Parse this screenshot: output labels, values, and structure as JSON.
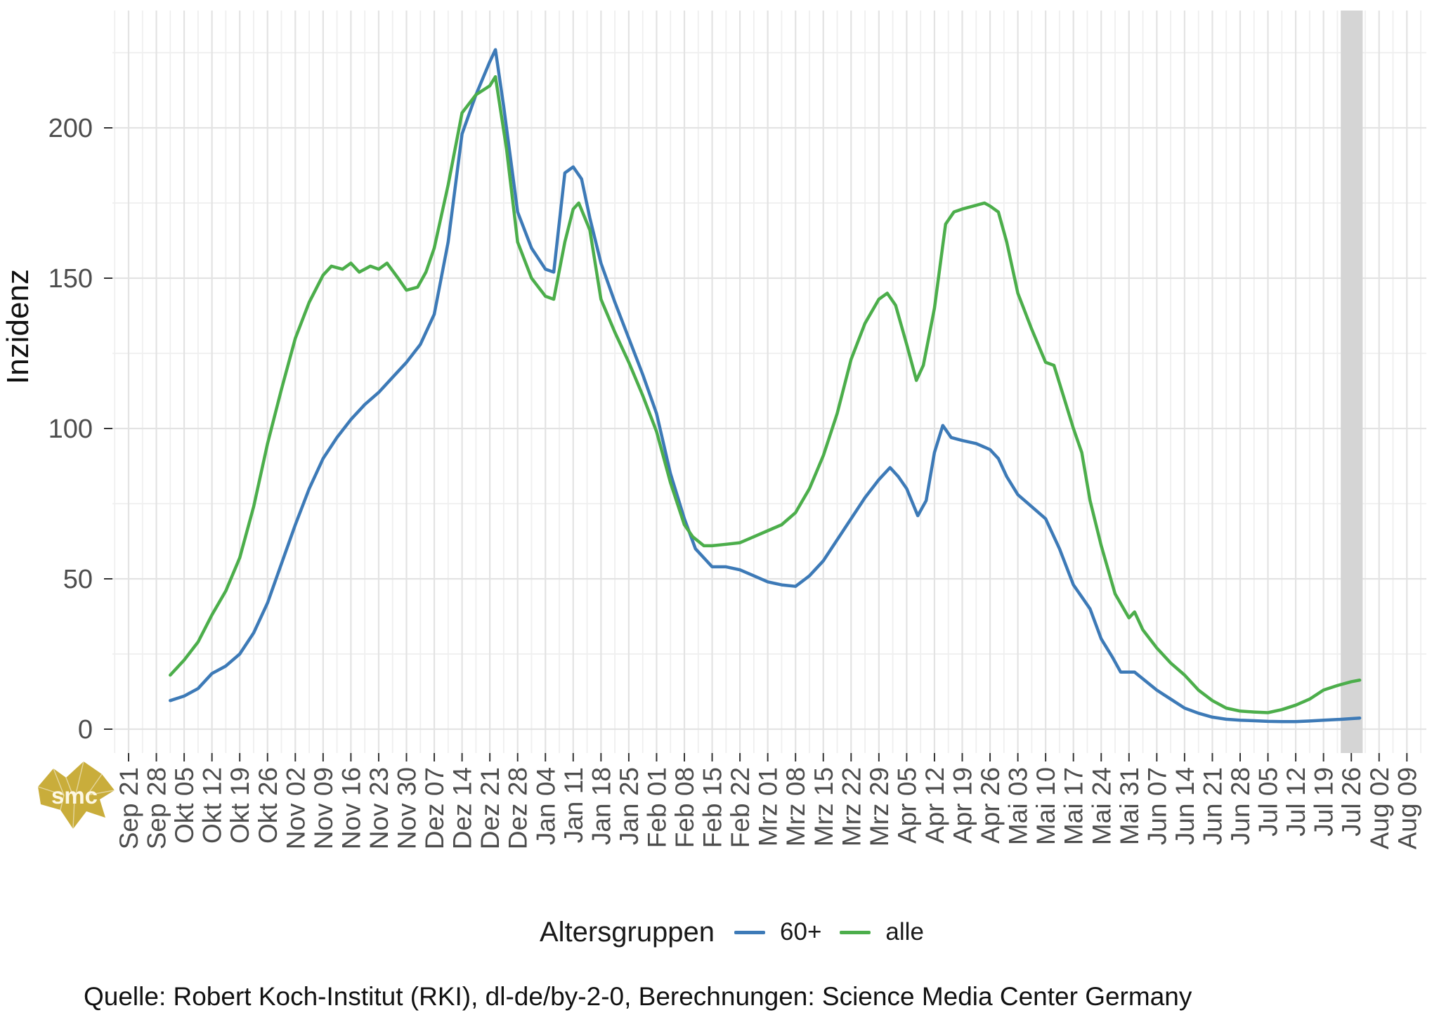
{
  "chart_data": {
    "type": "line",
    "title": "",
    "xlabel": "",
    "ylabel": "Inzidenz",
    "ylim": [
      0,
      232
    ],
    "yticks": [
      0,
      50,
      100,
      150,
      200
    ],
    "grid": "on",
    "categories": [
      "Sep 21",
      "Sep 28",
      "Okt 05",
      "Okt 12",
      "Okt 19",
      "Okt 26",
      "Nov 02",
      "Nov 09",
      "Nov 16",
      "Nov 23",
      "Nov 30",
      "Dez 07",
      "Dez 14",
      "Dez 21",
      "Dez 28",
      "Jan 04",
      "Jan 11",
      "Jan 18",
      "Jan 25",
      "Feb 01",
      "Feb 08",
      "Feb 15",
      "Feb 22",
      "Mrz 01",
      "Mrz 08",
      "Mrz 15",
      "Mrz 22",
      "Mrz 29",
      "Apr 05",
      "Apr 12",
      "Apr 19",
      "Apr 26",
      "Mai 03",
      "Mai 10",
      "Mai 17",
      "Mai 24",
      "Mai 31",
      "Jun 07",
      "Jun 14",
      "Jun 21",
      "Jun 28",
      "Jul 05",
      "Jul 12",
      "Jul 19",
      "Jul 26",
      "Aug 02",
      "Aug 09"
    ],
    "legend": {
      "title": "Altersgruppen",
      "position": "bottom"
    },
    "highlight_band": {
      "from_week": 43.62,
      "to_week": 44.41,
      "color": "#d5d5d5"
    },
    "series": [
      {
        "name": "60+",
        "color": "#3d7ab7",
        "points": [
          [
            1.5,
            9.5
          ],
          [
            2,
            11
          ],
          [
            2.5,
            13.5
          ],
          [
            3,
            18.5
          ],
          [
            3.5,
            21
          ],
          [
            4,
            25
          ],
          [
            4.5,
            32
          ],
          [
            5,
            42
          ],
          [
            5.5,
            55
          ],
          [
            6,
            68
          ],
          [
            6.5,
            80
          ],
          [
            7,
            90
          ],
          [
            7.5,
            97
          ],
          [
            8,
            103
          ],
          [
            8.5,
            108
          ],
          [
            9,
            112
          ],
          [
            9.5,
            117
          ],
          [
            10,
            122
          ],
          [
            10.5,
            128
          ],
          [
            11,
            138
          ],
          [
            11.5,
            162
          ],
          [
            12,
            198
          ],
          [
            12.5,
            211
          ],
          [
            13,
            222
          ],
          [
            13.2,
            226
          ],
          [
            13.5,
            207
          ],
          [
            14,
            172
          ],
          [
            14.5,
            160
          ],
          [
            15,
            153
          ],
          [
            15.3,
            152
          ],
          [
            15.7,
            185
          ],
          [
            16,
            187
          ],
          [
            16.3,
            183
          ],
          [
            16.6,
            170
          ],
          [
            17,
            155
          ],
          [
            17.5,
            142
          ],
          [
            18,
            130
          ],
          [
            18.5,
            118
          ],
          [
            19,
            105
          ],
          [
            19.5,
            85
          ],
          [
            20,
            70
          ],
          [
            20.4,
            60
          ],
          [
            21,
            54
          ],
          [
            21.5,
            54
          ],
          [
            22,
            53
          ],
          [
            22.5,
            51
          ],
          [
            23,
            49
          ],
          [
            23.5,
            48
          ],
          [
            24,
            47.5
          ],
          [
            24.5,
            51
          ],
          [
            25,
            56
          ],
          [
            25.5,
            63
          ],
          [
            26,
            70
          ],
          [
            26.5,
            77
          ],
          [
            27,
            83
          ],
          [
            27.4,
            87
          ],
          [
            27.7,
            84
          ],
          [
            28,
            80
          ],
          [
            28.4,
            71
          ],
          [
            28.7,
            76
          ],
          [
            29,
            92
          ],
          [
            29.3,
            101
          ],
          [
            29.6,
            97
          ],
          [
            30,
            96
          ],
          [
            30.5,
            95
          ],
          [
            31,
            93
          ],
          [
            31.3,
            90
          ],
          [
            31.6,
            84
          ],
          [
            32,
            78
          ],
          [
            32.5,
            74
          ],
          [
            33,
            70
          ],
          [
            33.5,
            60
          ],
          [
            34,
            48
          ],
          [
            34.3,
            44
          ],
          [
            34.6,
            40
          ],
          [
            35,
            30
          ],
          [
            35.4,
            24
          ],
          [
            35.7,
            19
          ],
          [
            36.2,
            19
          ],
          [
            37,
            13
          ],
          [
            37.5,
            10
          ],
          [
            38,
            7
          ],
          [
            38.5,
            5.3
          ],
          [
            39,
            4
          ],
          [
            39.5,
            3.3
          ],
          [
            40,
            3
          ],
          [
            40.5,
            2.8
          ],
          [
            41,
            2.6
          ],
          [
            41.5,
            2.5
          ],
          [
            42,
            2.5
          ],
          [
            42.5,
            2.7
          ],
          [
            43,
            3
          ],
          [
            43.5,
            3.2
          ],
          [
            44,
            3.5
          ],
          [
            44.3,
            3.7
          ]
        ]
      },
      {
        "name": "alle",
        "color": "#4cae4b",
        "points": [
          [
            1.5,
            18
          ],
          [
            2,
            23
          ],
          [
            2.5,
            29
          ],
          [
            3,
            38
          ],
          [
            3.5,
            46
          ],
          [
            4,
            57
          ],
          [
            4.5,
            74
          ],
          [
            5,
            95
          ],
          [
            5.5,
            113
          ],
          [
            6,
            130
          ],
          [
            6.5,
            142
          ],
          [
            7,
            151
          ],
          [
            7.3,
            154
          ],
          [
            7.7,
            153
          ],
          [
            8,
            155
          ],
          [
            8.3,
            152
          ],
          [
            8.7,
            154
          ],
          [
            9,
            153
          ],
          [
            9.3,
            155
          ],
          [
            9.7,
            150
          ],
          [
            10,
            146
          ],
          [
            10.4,
            147
          ],
          [
            10.7,
            152
          ],
          [
            11,
            160
          ],
          [
            11.5,
            181
          ],
          [
            12,
            205
          ],
          [
            12.5,
            211
          ],
          [
            13,
            214
          ],
          [
            13.2,
            217
          ],
          [
            13.6,
            193
          ],
          [
            14,
            162
          ],
          [
            14.5,
            150
          ],
          [
            15,
            144
          ],
          [
            15.3,
            143
          ],
          [
            15.7,
            162
          ],
          [
            16,
            173
          ],
          [
            16.2,
            175
          ],
          [
            16.6,
            166
          ],
          [
            17,
            143
          ],
          [
            17.5,
            132
          ],
          [
            18,
            122
          ],
          [
            18.5,
            111
          ],
          [
            19,
            99
          ],
          [
            19.5,
            82
          ],
          [
            20,
            68
          ],
          [
            20.3,
            64
          ],
          [
            20.7,
            61
          ],
          [
            21,
            61
          ],
          [
            21.5,
            61.5
          ],
          [
            22,
            62
          ],
          [
            22.5,
            64
          ],
          [
            23,
            66
          ],
          [
            23.5,
            68
          ],
          [
            24,
            72
          ],
          [
            24.5,
            80
          ],
          [
            25,
            91
          ],
          [
            25.5,
            105
          ],
          [
            26,
            123
          ],
          [
            26.5,
            135
          ],
          [
            27,
            143
          ],
          [
            27.3,
            145
          ],
          [
            27.6,
            141
          ],
          [
            28,
            128
          ],
          [
            28.35,
            116
          ],
          [
            28.6,
            121
          ],
          [
            29,
            140
          ],
          [
            29.4,
            168
          ],
          [
            29.7,
            172
          ],
          [
            30,
            173
          ],
          [
            30.4,
            174
          ],
          [
            30.8,
            175
          ],
          [
            31,
            174
          ],
          [
            31.3,
            172
          ],
          [
            31.6,
            162
          ],
          [
            32,
            145
          ],
          [
            32.5,
            133
          ],
          [
            33,
            122
          ],
          [
            33.3,
            121
          ],
          [
            33.6,
            112
          ],
          [
            34,
            100
          ],
          [
            34.3,
            92
          ],
          [
            34.6,
            76
          ],
          [
            35,
            61
          ],
          [
            35.5,
            45
          ],
          [
            36,
            37
          ],
          [
            36.2,
            39
          ],
          [
            36.5,
            33
          ],
          [
            37,
            27
          ],
          [
            37.5,
            22
          ],
          [
            38,
            18
          ],
          [
            38.5,
            13
          ],
          [
            39,
            9.5
          ],
          [
            39.5,
            7
          ],
          [
            40,
            6
          ],
          [
            40.5,
            5.7
          ],
          [
            41,
            5.5
          ],
          [
            41.5,
            6.5
          ],
          [
            42,
            8
          ],
          [
            42.5,
            10
          ],
          [
            43,
            13
          ],
          [
            43.5,
            14.5
          ],
          [
            44,
            15.8
          ],
          [
            44.3,
            16.3
          ]
        ]
      }
    ]
  },
  "caption": "Quelle: Robert Koch-Institut (RKI), dl-de/by-2-0, Berechnungen: Science Media Center Germany",
  "logo": {
    "text": "smc",
    "color": "#c9ad3b"
  },
  "colors": {
    "grid_major": "#e3e3e3",
    "grid_minor": "#efefef",
    "tick": "#333333",
    "axis_text": "#4d4d4d",
    "band": "#d5d5d5"
  }
}
